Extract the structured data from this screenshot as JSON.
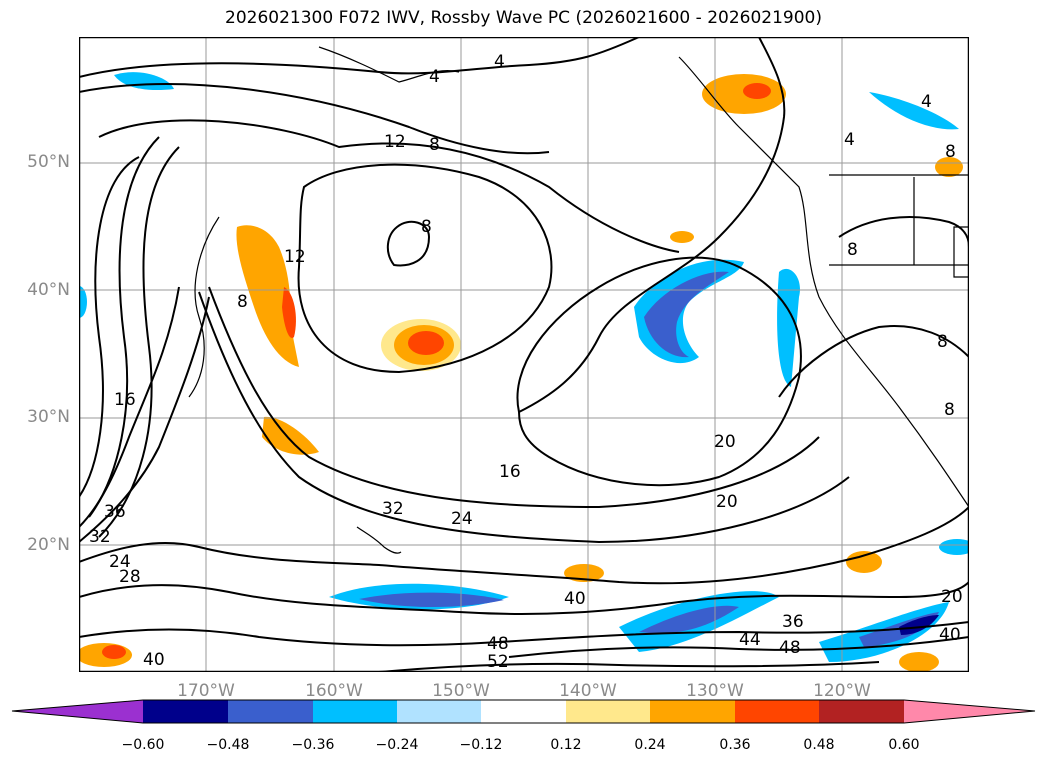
{
  "title": "2026021300 F072 IWV, Rossby Wave PC (2026021600 - 2026021900)",
  "lat_labels": [
    "50°N",
    "40°N",
    "30°N",
    "20°N"
  ],
  "lon_labels": [
    "170°W",
    "160°W",
    "150°W",
    "140°W",
    "130°W",
    "120°W"
  ],
  "contour_labels": [
    "4",
    "4",
    "4",
    "4",
    "8",
    "12",
    "8",
    "8",
    "12",
    "8",
    "16",
    "32",
    "36",
    "24",
    "28",
    "16",
    "32",
    "24",
    "20",
    "20",
    "40",
    "40",
    "48",
    "52",
    "44",
    "48",
    "36",
    "20",
    "40",
    "8",
    "8",
    "8"
  ],
  "colorbar": {
    "ticks": [
      "−0.60",
      "−0.48",
      "−0.36",
      "−0.24",
      "−0.12",
      "0.12",
      "0.24",
      "0.36",
      "0.48",
      "0.60"
    ],
    "colors": [
      "#9b30d0",
      "#00008b",
      "#3a5fcd",
      "#00bfff",
      "#b0e2ff",
      "#ffffff",
      "#ffe88c",
      "#ffa500",
      "#ff4500",
      "#b22222",
      "#ff88aa"
    ]
  },
  "colors": {
    "negative_strong": "#00008b",
    "negative_mid": "#3a5fcd",
    "negative_light": "#00bfff",
    "negative_pale": "#b0e2ff",
    "positive_pale": "#ffe88c",
    "positive_mid": "#ffa500",
    "positive_strong": "#ff4500"
  }
}
